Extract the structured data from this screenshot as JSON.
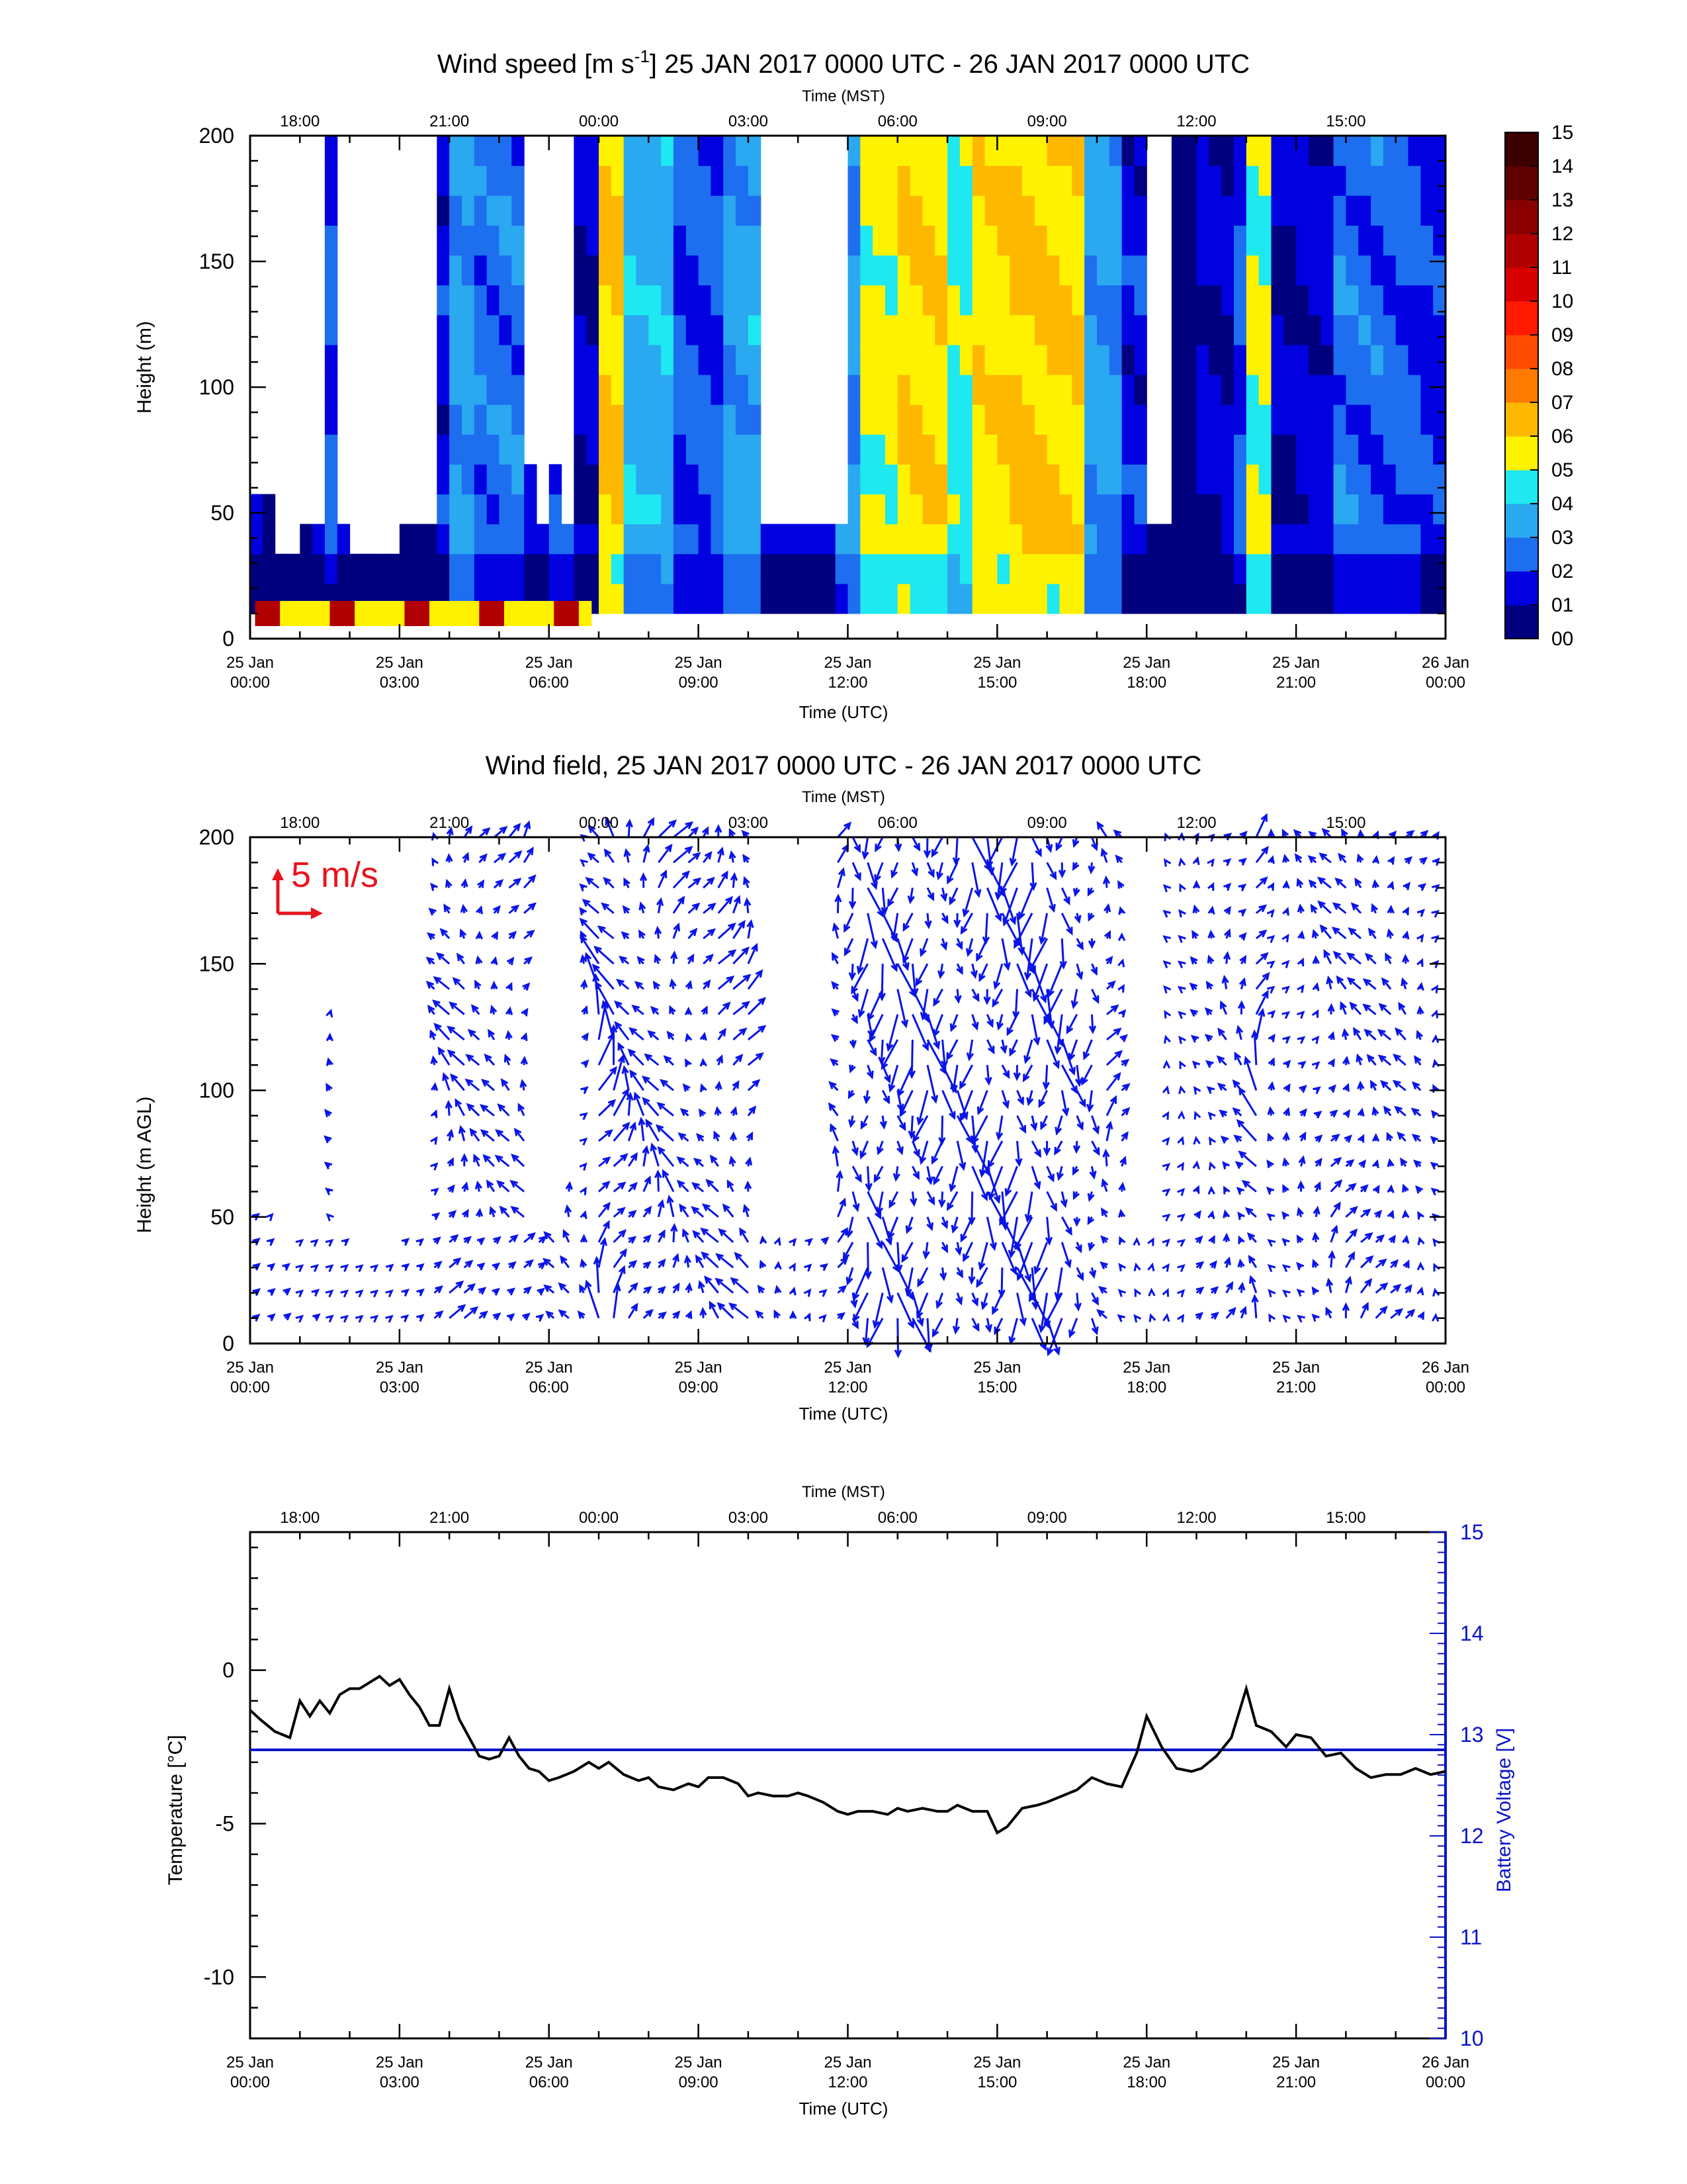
{
  "figure": {
    "panel1_title": "Wind speed [m s",
    "panel1_title_sup": "-1",
    "panel1_title_rest": "] 25 JAN 2017 0000 UTC - 26 JAN 2017 0000 UTC",
    "panel2_title": "Wind field, 25 JAN 2017 0000 UTC - 26 JAN 2017 0000 UTC"
  },
  "colors": {
    "axis": "#000000",
    "vector": "#0a14e6",
    "scale_arrow": "#e8141e",
    "voltage": "#0a14c8",
    "temperature": "#000000"
  },
  "chart_data": [
    {
      "type": "heatmap",
      "title": "Wind speed [m s-1] 25 JAN 2017 0000 UTC - 26 JAN 2017 0000 UTC",
      "xlabel_bottom": "Time (UTC)",
      "xlabel_top": "Time (MST)",
      "ylabel": "Height (m)",
      "x_ticks_utc": [
        "25 Jan\n00:00",
        "25 Jan\n03:00",
        "25 Jan\n06:00",
        "25 Jan\n09:00",
        "25 Jan\n12:00",
        "25 Jan\n15:00",
        "25 Jan\n18:00",
        "25 Jan\n21:00",
        "26 Jan\n00:00"
      ],
      "x_ticks_mst": [
        "18:00",
        "21:00",
        "00:00",
        "03:00",
        "06:00",
        "09:00",
        "12:00",
        "15:00"
      ],
      "y_ticks": [
        0,
        50,
        100,
        150,
        200
      ],
      "ylim": [
        0,
        200
      ],
      "xlim_hours": [
        0,
        24
      ],
      "colorbar_labels": [
        "00",
        "01",
        "02",
        "03",
        "04",
        "05",
        "06",
        "07",
        "08",
        "09",
        "10",
        "11",
        "12",
        "13",
        "14",
        "15"
      ],
      "colorbar_colors": [
        "#00007f",
        "#0000e0",
        "#1e6ef0",
        "#2aa8f0",
        "#1ee8f0",
        "#fff200",
        "#ffb800",
        "#ff7a00",
        "#ff4a00",
        "#ff1a00",
        "#d80000",
        "#b00000",
        "#8a0000",
        "#600000",
        "#3c0000"
      ],
      "speed_by_time": [
        {
          "t": 0.0,
          "speed": 0.8,
          "top": 50
        },
        {
          "t": 0.5,
          "speed": 1.0,
          "top": 30
        },
        {
          "t": 0.9,
          "speed": 0.5,
          "top": 40
        },
        {
          "t": 1.1,
          "speed": 1.2,
          "top": 200
        },
        {
          "t": 1.4,
          "speed": 2.0,
          "top": 200
        },
        {
          "t": 1.6,
          "speed": 1.0,
          "top": 130
        },
        {
          "t": 1.8,
          "speed": 1.2,
          "top": 200
        },
        {
          "t": 2.0,
          "speed": 0.6,
          "top": 30
        },
        {
          "t": 3.0,
          "speed": 0.7,
          "top": 60
        },
        {
          "t": 3.6,
          "speed": 1.5,
          "top": 200
        },
        {
          "t": 3.9,
          "speed": 3.2,
          "top": 200
        },
        {
          "t": 4.5,
          "speed": 2.5,
          "top": 200
        },
        {
          "t": 5.5,
          "speed": 1.3,
          "top": 60
        },
        {
          "t": 5.8,
          "speed": 3.3,
          "top": 200
        },
        {
          "t": 6.0,
          "speed": 2.0,
          "top": 60
        },
        {
          "t": 6.4,
          "speed": 1.2,
          "top": 200
        },
        {
          "t": 6.9,
          "speed": 6.0,
          "top": 200
        },
        {
          "t": 7.5,
          "speed": 3.6,
          "top": 200
        },
        {
          "t": 8.5,
          "speed": 2.2,
          "top": 200
        },
        {
          "t": 9.3,
          "speed": 3.3,
          "top": 200
        },
        {
          "t": 9.8,
          "speed": 3.5,
          "top": 200
        },
        {
          "t": 10.2,
          "speed": 1.5,
          "top": 40
        },
        {
          "t": 11.6,
          "speed": 3.0,
          "top": 200
        },
        {
          "t": 12.2,
          "speed": 5.4,
          "top": 200
        },
        {
          "t": 13.0,
          "speed": 5.8,
          "top": 200
        },
        {
          "t": 13.8,
          "speed": 4.6,
          "top": 200
        },
        {
          "t": 14.5,
          "speed": 5.7,
          "top": 200
        },
        {
          "t": 15.2,
          "speed": 6.2,
          "top": 200
        },
        {
          "t": 16.0,
          "speed": 5.9,
          "top": 200
        },
        {
          "t": 16.6,
          "speed": 3.2,
          "top": 200
        },
        {
          "t": 17.3,
          "speed": 1.5,
          "top": 200
        },
        {
          "t": 17.8,
          "speed": 0.6,
          "top": 200
        },
        {
          "t": 18.3,
          "speed": 0.4,
          "top": 200
        },
        {
          "t": 19.0,
          "speed": 1.2,
          "top": 200
        },
        {
          "t": 19.6,
          "speed": 2.0,
          "top": 200
        },
        {
          "t": 20.0,
          "speed": 5.2,
          "top": 200
        },
        {
          "t": 20.4,
          "speed": 1.1,
          "top": 200
        },
        {
          "t": 21.0,
          "speed": 1.4,
          "top": 200
        },
        {
          "t": 21.6,
          "speed": 2.5,
          "top": 200
        },
        {
          "t": 22.6,
          "speed": 2.3,
          "top": 200
        },
        {
          "t": 23.4,
          "speed": 1.6,
          "top": 200
        },
        {
          "t": 23.8,
          "speed": 0.8,
          "top": 200
        }
      ],
      "gaps_hours": [
        [
          1.2,
          1.35
        ],
        [
          1.75,
          1.95
        ],
        [
          2.05,
          3.6
        ],
        [
          5.55,
          5.8
        ],
        [
          6.05,
          6.35
        ],
        [
          10.1,
          11.8
        ],
        [
          17.8,
          18.4
        ]
      ],
      "surface_jet": {
        "speed": 11,
        "height": 15,
        "time_range": [
          0.1,
          6.8
        ]
      }
    },
    {
      "type": "scatter",
      "subtype": "wind-vectors",
      "title": "Wind field, 25 JAN 2017 0000 UTC - 26 JAN 2017 0000 UTC",
      "xlabel_bottom": "Time (UTC)",
      "xlabel_top": "Time (MST)",
      "ylabel": "Height (m AGL)",
      "scale_label": "5 m/s",
      "scale_speed": 5,
      "ylim": [
        0,
        200
      ],
      "y_ticks": [
        0,
        50,
        100,
        150,
        200
      ],
      "x_ticks_utc": [
        "25 Jan\n00:00",
        "25 Jan\n03:00",
        "25 Jan\n06:00",
        "25 Jan\n09:00",
        "25 Jan\n12:00",
        "25 Jan\n15:00",
        "25 Jan\n18:00",
        "25 Jan\n21:00",
        "26 Jan\n00:00"
      ],
      "x_ticks_mst": [
        "18:00",
        "21:00",
        "00:00",
        "03:00",
        "06:00",
        "09:00",
        "12:00",
        "15:00"
      ]
    },
    {
      "type": "line",
      "xlabel_bottom": "Time (UTC)",
      "xlabel_top": "Time (MST)",
      "ylabel_left": "Temperature [°C]",
      "ylabel_right": "Battery Voltage [V]",
      "ylim_left": [
        -12,
        4.5
      ],
      "ylim_right": [
        10,
        15
      ],
      "y_ticks_left": [
        0,
        -5,
        -10
      ],
      "y_ticks_right": [
        15,
        14,
        13,
        12,
        11,
        10
      ],
      "x_ticks_utc": [
        "25 Jan\n00:00",
        "25 Jan\n03:00",
        "25 Jan\n06:00",
        "25 Jan\n09:00",
        "25 Jan\n12:00",
        "25 Jan\n15:00",
        "25 Jan\n18:00",
        "25 Jan\n21:00",
        "26 Jan\n00:00"
      ],
      "x_ticks_mst": [
        "18:00",
        "21:00",
        "00:00",
        "03:00",
        "06:00",
        "09:00",
        "12:00",
        "15:00"
      ],
      "series": [
        {
          "name": "Temperature",
          "x": [
            0,
            0.2,
            0.5,
            0.8,
            1.0,
            1.2,
            1.4,
            1.6,
            1.8,
            2.0,
            2.2,
            2.4,
            2.6,
            2.8,
            3.0,
            3.2,
            3.4,
            3.6,
            3.8,
            4.0,
            4.2,
            4.4,
            4.6,
            4.8,
            5.0,
            5.2,
            5.4,
            5.6,
            5.8,
            6.0,
            6.2,
            6.5,
            6.8,
            7.0,
            7.2,
            7.5,
            7.8,
            8.0,
            8.2,
            8.5,
            8.8,
            9.0,
            9.2,
            9.5,
            9.8,
            10.0,
            10.2,
            10.5,
            10.8,
            11.0,
            11.2,
            11.5,
            11.8,
            12.0,
            12.2,
            12.5,
            12.8,
            13.0,
            13.2,
            13.5,
            13.8,
            14.0,
            14.2,
            14.5,
            14.8,
            15.0,
            15.2,
            15.5,
            15.8,
            16.0,
            16.3,
            16.6,
            16.9,
            17.2,
            17.5,
            17.8,
            18.0,
            18.3,
            18.6,
            18.9,
            19.1,
            19.4,
            19.7,
            20.0,
            20.2,
            20.5,
            20.8,
            21.0,
            21.3,
            21.6,
            21.9,
            22.2,
            22.5,
            22.8,
            23.1,
            23.4,
            23.7,
            24.0
          ],
          "values": [
            -1.3,
            -1.6,
            -2.0,
            -2.2,
            -1.0,
            -1.5,
            -1.0,
            -1.4,
            -0.8,
            -0.6,
            -0.6,
            -0.4,
            -0.2,
            -0.5,
            -0.3,
            -0.8,
            -1.2,
            -1.8,
            -1.8,
            -0.6,
            -1.6,
            -2.2,
            -2.8,
            -2.9,
            -2.8,
            -2.2,
            -2.8,
            -3.2,
            -3.3,
            -3.6,
            -3.5,
            -3.3,
            -3.0,
            -3.2,
            -3.0,
            -3.4,
            -3.6,
            -3.5,
            -3.8,
            -3.9,
            -3.7,
            -3.8,
            -3.5,
            -3.5,
            -3.7,
            -4.1,
            -4.0,
            -4.1,
            -4.1,
            -4.0,
            -4.1,
            -4.3,
            -4.6,
            -4.7,
            -4.6,
            -4.6,
            -4.7,
            -4.5,
            -4.6,
            -4.5,
            -4.6,
            -4.6,
            -4.4,
            -4.6,
            -4.6,
            -5.3,
            -5.1,
            -4.5,
            -4.4,
            -4.3,
            -4.1,
            -3.9,
            -3.5,
            -3.7,
            -3.8,
            -2.7,
            -1.5,
            -2.5,
            -3.2,
            -3.3,
            -3.2,
            -2.8,
            -2.2,
            -0.6,
            -1.8,
            -2.0,
            -2.5,
            -2.1,
            -2.2,
            -2.8,
            -2.7,
            -3.2,
            -3.5,
            -3.4,
            -3.4,
            -3.2,
            -3.4,
            -3.3
          ],
          "color": "#000000"
        },
        {
          "name": "Battery Voltage",
          "x": [
            0,
            24
          ],
          "values": [
            12.85,
            12.85
          ],
          "color": "#0a14c8"
        }
      ]
    }
  ]
}
